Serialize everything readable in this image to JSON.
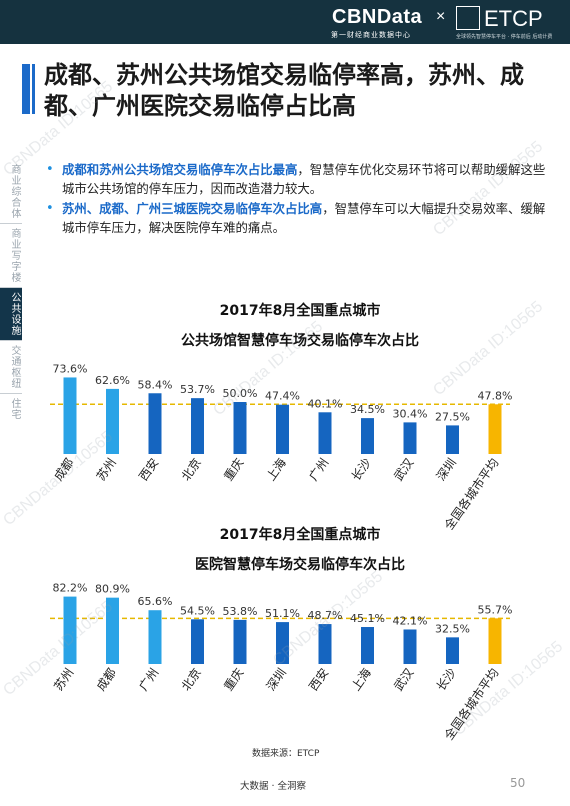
{
  "header": {
    "brand": "CBNData",
    "separator": "×",
    "brand_sub": "第一财经商业数据中心",
    "partner": "ETCP",
    "partner_sub": "全球领先智慧停车平台 · 停车前后  后动计费"
  },
  "title": "成都、苏州公共场馆交易临停率高，苏州、成都、广州医院交易临停占比高",
  "side_tabs": [
    {
      "label": "商业综合体",
      "active": false
    },
    {
      "label": "商业写字楼",
      "active": false
    },
    {
      "label": "公共设施",
      "active": true
    },
    {
      "label": "交通枢纽",
      "active": false
    },
    {
      "label": "住宅",
      "active": false
    }
  ],
  "bullets": [
    {
      "bullet": "•",
      "highlight": "成都和苏州公共场馆交易临停车次占比最高",
      "text": "，智慧停车优化交易环节将可以帮助缓解这些城市公共场馆的停车压力，因而改造潜力较大。"
    },
    {
      "bullet": "•",
      "highlight": "苏州、成都、广州三城医院交易临停车次占比高",
      "text": "，智慧停车可以大幅提升交易效率、缓解城市停车压力，解决医院停车难的痛点。"
    }
  ],
  "chart_data": [
    {
      "type": "bar",
      "title_line1": "2017年8月全国重点城市",
      "title_line2": "公共场馆智慧停车场交易临停车次占比",
      "categories": [
        "成都",
        "苏州",
        "西安",
        "北京",
        "重庆",
        "上海",
        "广州",
        "长沙",
        "武汉",
        "深圳",
        "全国各城市平均"
      ],
      "values": [
        73.6,
        62.6,
        58.4,
        53.7,
        50.0,
        47.4,
        40.1,
        34.5,
        30.4,
        27.5,
        47.8
      ],
      "labels": [
        "73.6%",
        "62.6%",
        "58.4%",
        "53.7%",
        "50.0%",
        "47.4%",
        "40.1%",
        "34.5%",
        "30.4%",
        "27.5%",
        "47.8%"
      ],
      "average": 47.8,
      "colors": [
        "#2aa3e6",
        "#2aa3e6",
        "#1565c0",
        "#1565c0",
        "#1565c0",
        "#1565c0",
        "#1565c0",
        "#1565c0",
        "#1565c0",
        "#1565c0",
        "#f7b500"
      ],
      "average_line_color": "#e6b800",
      "ylim": [
        0,
        80
      ]
    },
    {
      "type": "bar",
      "title_line1": "2017年8月全国重点城市",
      "title_line2": "医院智慧停车场交易临停车次占比",
      "categories": [
        "苏州",
        "成都",
        "广州",
        "北京",
        "重庆",
        "深圳",
        "西安",
        "上海",
        "武汉",
        "长沙",
        "全国各城市平均"
      ],
      "values": [
        82.2,
        80.9,
        65.6,
        54.5,
        53.8,
        51.1,
        48.7,
        45.1,
        42.1,
        32.5,
        55.7
      ],
      "labels": [
        "82.2%",
        "80.9%",
        "65.6%",
        "54.5%",
        "53.8%",
        "51.1%",
        "48.7%",
        "45.1%",
        "42.1%",
        "32.5%",
        "55.7%"
      ],
      "average": 55.7,
      "colors": [
        "#2aa3e6",
        "#2aa3e6",
        "#2aa3e6",
        "#1565c0",
        "#1565c0",
        "#1565c0",
        "#1565c0",
        "#1565c0",
        "#1565c0",
        "#1565c0",
        "#f7b500"
      ],
      "average_line_color": "#e6b800",
      "ylim": [
        0,
        90
      ]
    }
  ],
  "source": "数据来源：ETCP",
  "footer": "大数据 · 全洞察",
  "page_number": "50",
  "watermark": "CBNData ID:10565"
}
